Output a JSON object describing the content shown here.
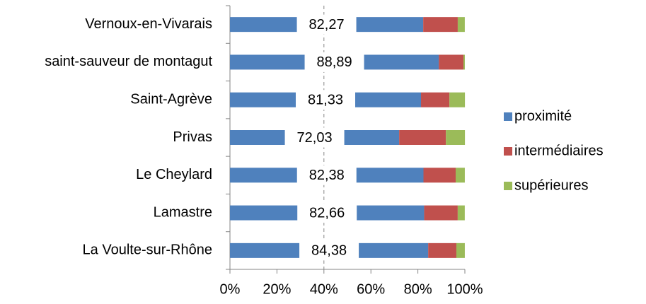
{
  "chart_data": {
    "type": "stacked_barh",
    "categories": [
      "Vernoux-en-Vivarais",
      "saint-sauveur de montagut",
      "Saint-Agrève",
      "Privas",
      "Le Cheylard",
      "Lamastre",
      "La Voulte-sur-Rhône"
    ],
    "series": [
      {
        "name": "proximité",
        "color": "#4f81bd",
        "values": [
          82.27,
          88.89,
          81.33,
          72.03,
          82.38,
          82.66,
          84.38
        ],
        "value_labels": [
          "82,27",
          "88,89",
          "81,33",
          "72,03",
          "82,38",
          "82,66",
          "84,38"
        ]
      },
      {
        "name": "intermédiaires",
        "color": "#c0504d",
        "values": [
          14.7,
          10.5,
          12.1,
          19.9,
          13.7,
          14.3,
          12.0
        ]
      },
      {
        "name": "supérieures",
        "color": "#9bbb59",
        "values": [
          3.0,
          0.6,
          6.6,
          8.1,
          3.9,
          3.0,
          3.6
        ]
      }
    ],
    "xlim": [
      0,
      100
    ],
    "xticks": [
      {
        "value": 0,
        "label": "0%"
      },
      {
        "value": 20,
        "label": "20%"
      },
      {
        "value": 40,
        "label": "40%"
      },
      {
        "value": 60,
        "label": "60%"
      },
      {
        "value": 80,
        "label": "80%"
      },
      {
        "value": 100,
        "label": "100%"
      }
    ],
    "vline": 40,
    "legend": "right"
  }
}
